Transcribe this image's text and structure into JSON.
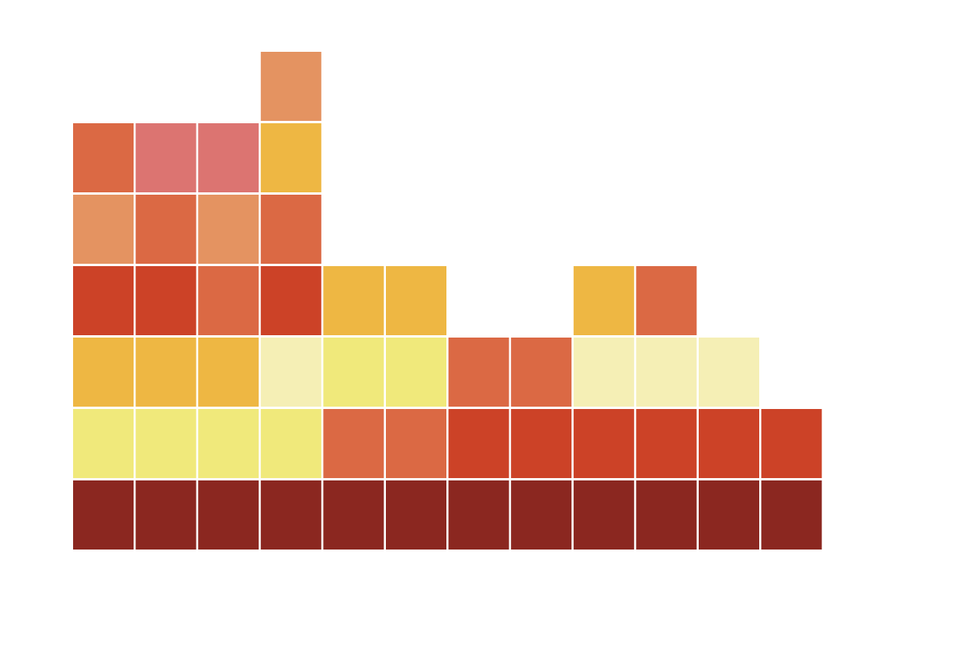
{
  "chart_data": {
    "type": "heatmap",
    "title": "",
    "xlabel": "",
    "ylabel": "",
    "grid": false,
    "legend": "none",
    "columns": 12,
    "rows_per_column_max": 7,
    "palette": {
      "dark_red": "#8b2720",
      "red": "#cc4227",
      "orange_red": "#db6944",
      "salmon": "#e49361",
      "pink": "#dc7471",
      "amber": "#eeb743",
      "yellow": "#f0e97b",
      "cream": "#f5efb5"
    },
    "stacks": [
      {
        "column": 1,
        "cells": [
          "dark_red",
          "yellow",
          "amber",
          "red",
          "salmon",
          "orange_red"
        ]
      },
      {
        "column": 2,
        "cells": [
          "dark_red",
          "yellow",
          "amber",
          "red",
          "orange_red",
          "pink"
        ]
      },
      {
        "column": 3,
        "cells": [
          "dark_red",
          "yellow",
          "amber",
          "orange_red",
          "salmon",
          "pink"
        ]
      },
      {
        "column": 4,
        "cells": [
          "dark_red",
          "yellow",
          "cream",
          "red",
          "orange_red",
          "amber",
          "salmon"
        ]
      },
      {
        "column": 5,
        "cells": [
          "dark_red",
          "orange_red",
          "yellow",
          "amber"
        ]
      },
      {
        "column": 6,
        "cells": [
          "dark_red",
          "orange_red",
          "yellow",
          "amber"
        ]
      },
      {
        "column": 7,
        "cells": [
          "dark_red",
          "red",
          "orange_red"
        ]
      },
      {
        "column": 8,
        "cells": [
          "dark_red",
          "red",
          "orange_red"
        ]
      },
      {
        "column": 9,
        "cells": [
          "dark_red",
          "red",
          "cream",
          "amber"
        ]
      },
      {
        "column": 10,
        "cells": [
          "dark_red",
          "red",
          "cream",
          "orange_red"
        ]
      },
      {
        "column": 11,
        "cells": [
          "dark_red",
          "red",
          "cream"
        ]
      },
      {
        "column": 12,
        "cells": [
          "dark_red",
          "red"
        ]
      }
    ],
    "counts": [
      6,
      6,
      6,
      7,
      4,
      4,
      3,
      3,
      4,
      4,
      3,
      2
    ]
  }
}
